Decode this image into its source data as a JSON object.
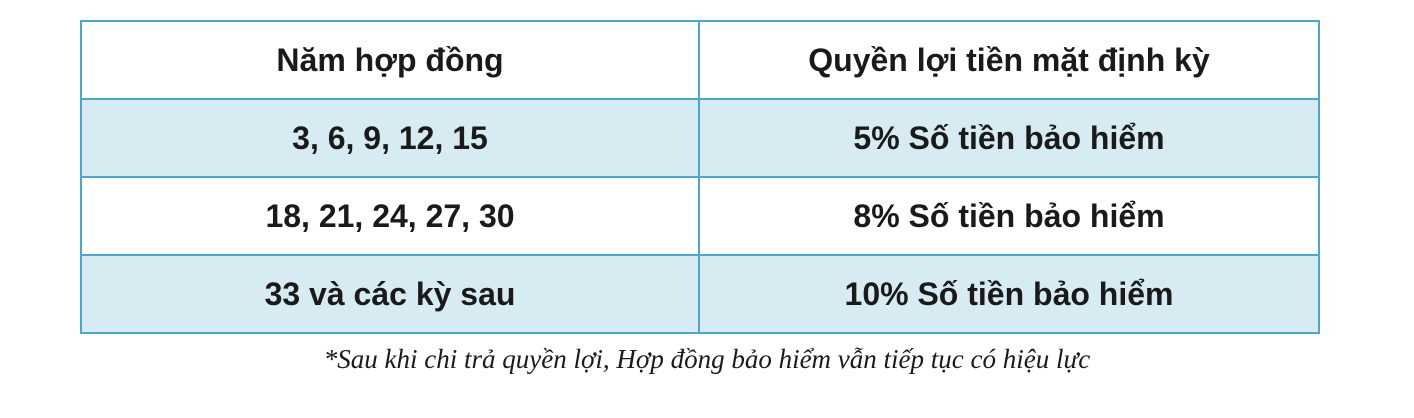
{
  "table": {
    "headers": [
      "Năm hợp đồng",
      "Quyền lợi tiền mặt định kỳ"
    ],
    "rows": [
      [
        "3, 6, 9, 12, 15",
        "5% Số tiền bảo hiểm"
      ],
      [
        "18, 21, 24, 27, 30",
        "8% Số tiền bảo hiểm"
      ],
      [
        "33 và các kỳ sau",
        "10% Số tiền bảo hiểm"
      ]
    ]
  },
  "footnote": "*Sau khi chi trả quyền lợi, Hợp đồng bảo hiểm vẫn tiếp tục có hiệu lực",
  "colors": {
    "border": "#4aa7cf",
    "shaded_row": "#d6ebf2",
    "text": "#1a1a1a"
  }
}
